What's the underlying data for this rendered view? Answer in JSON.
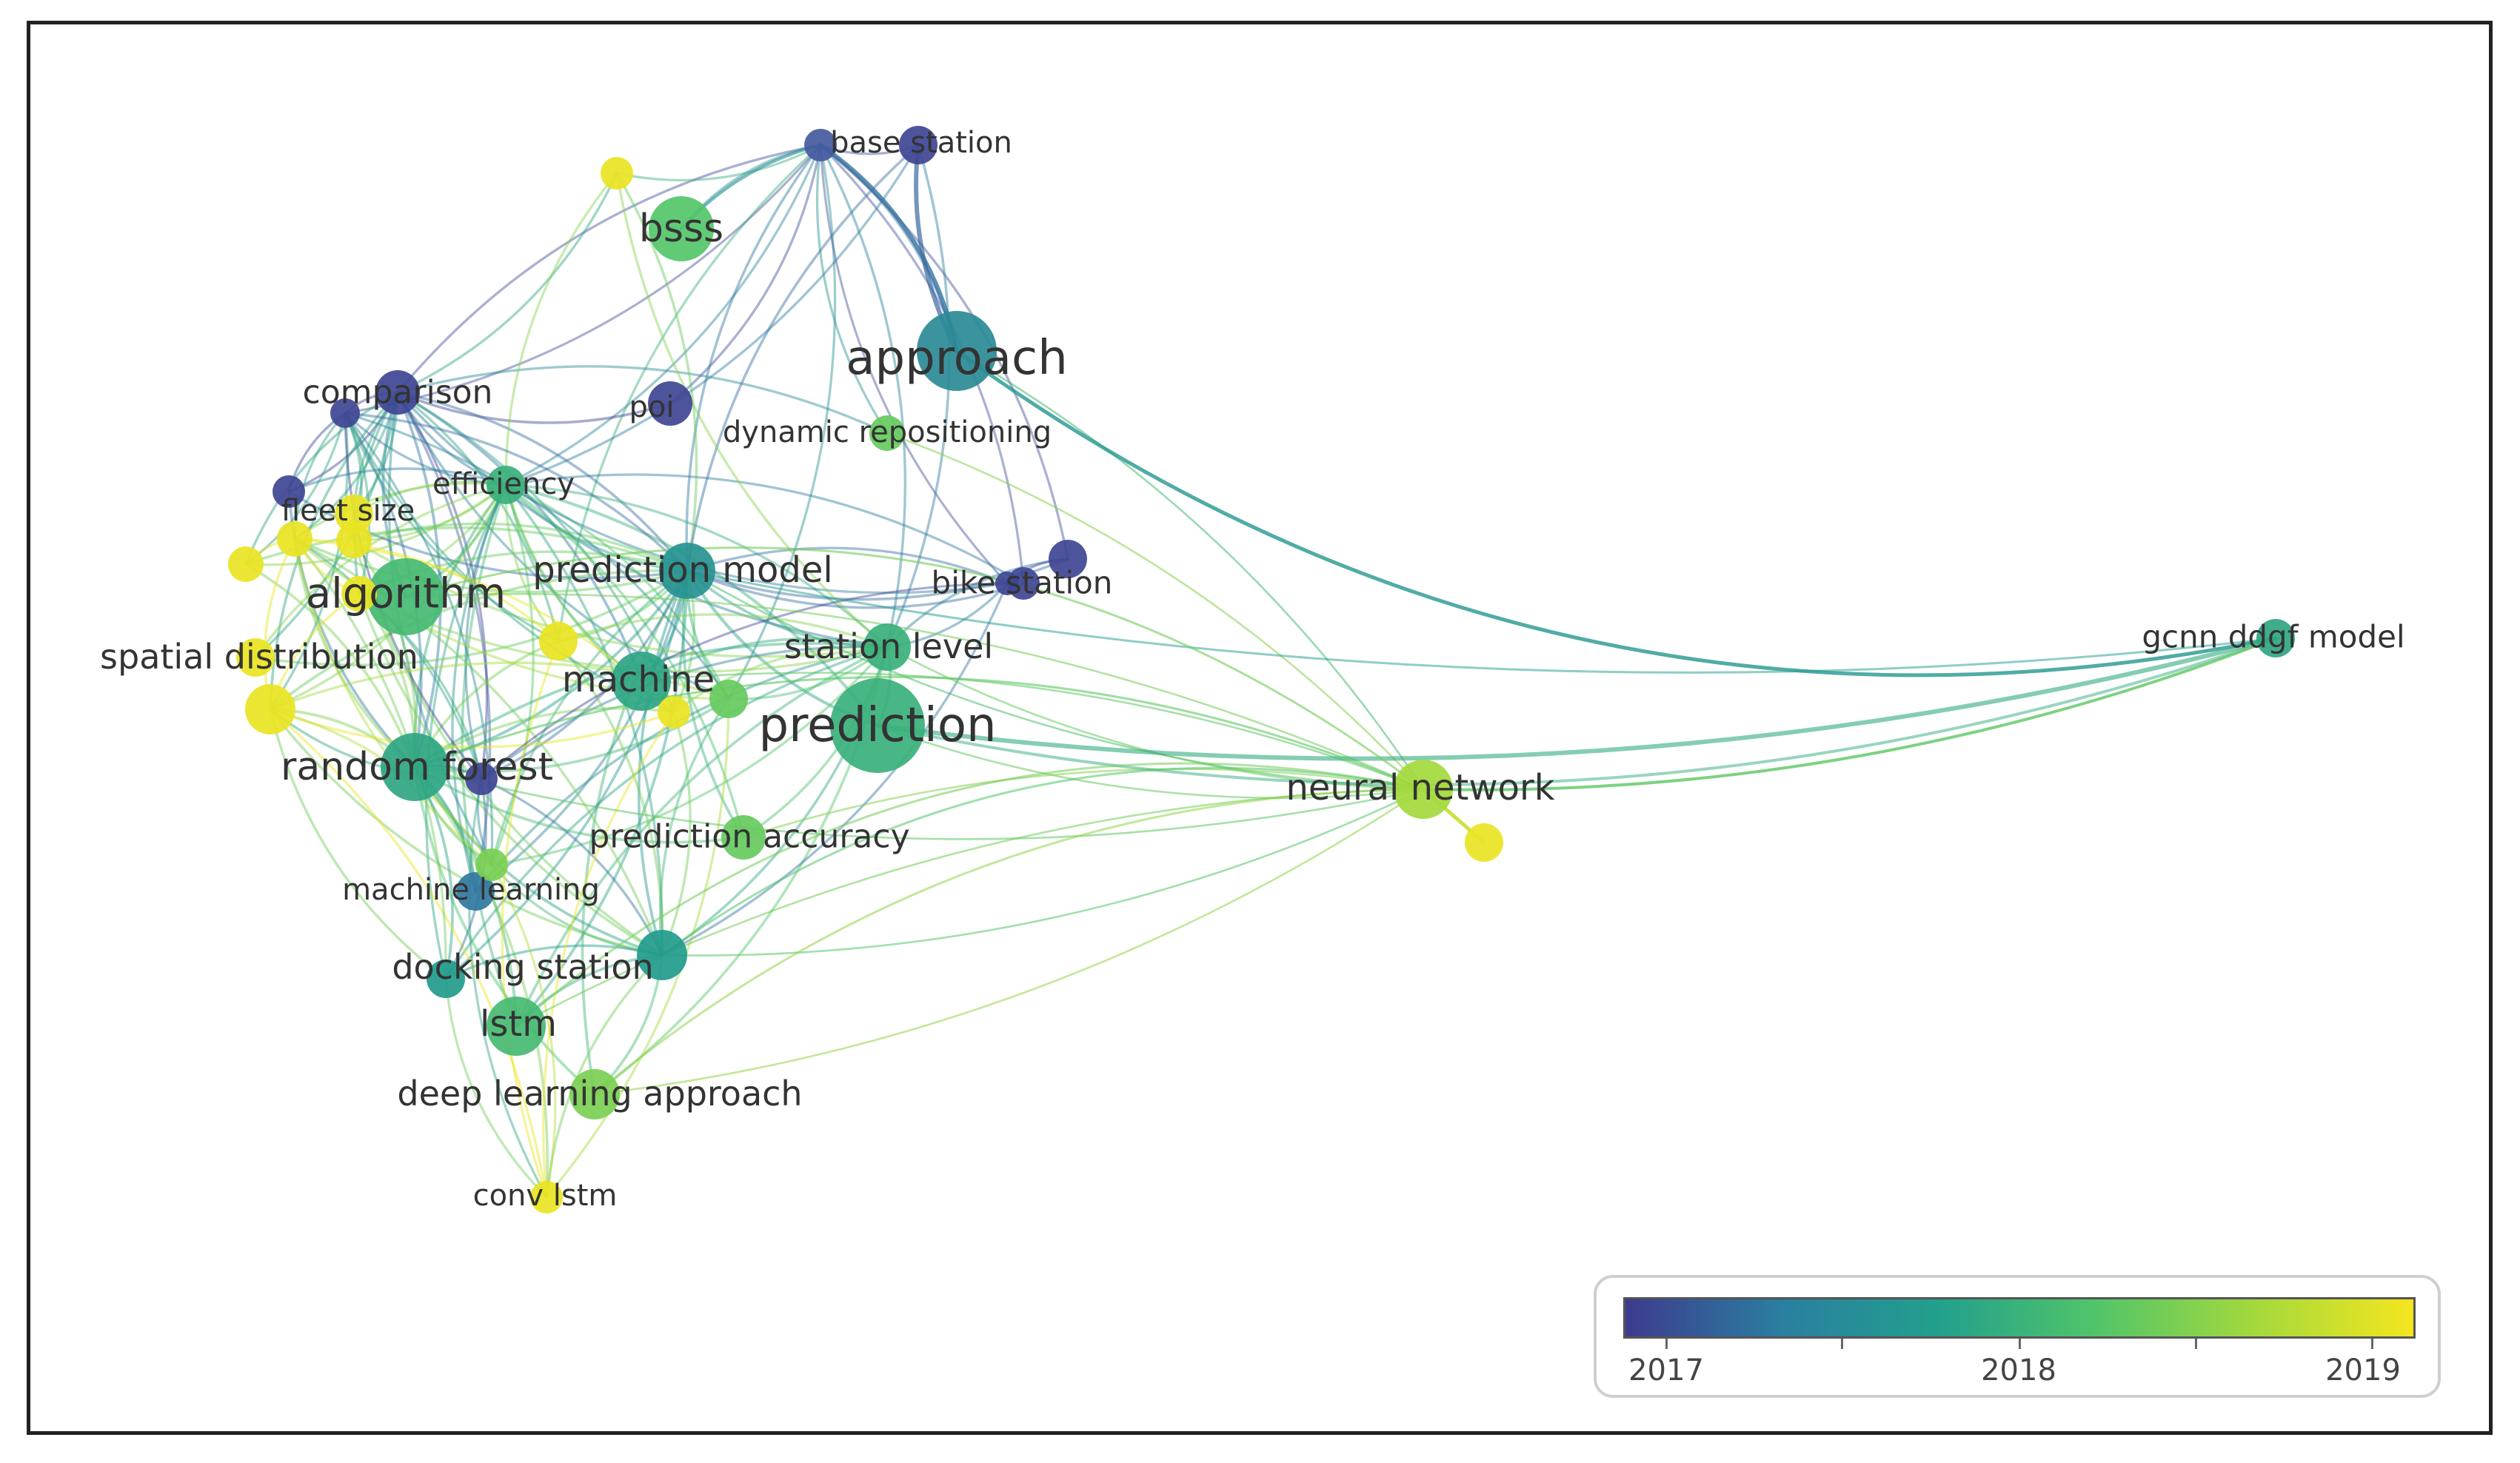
{
  "network": {
    "nodes": [
      {
        "id": "base-station",
        "label": "base station",
        "year": 2017.3
      },
      {
        "id": "bsss",
        "label": "bsss",
        "year": 2018.4
      },
      {
        "id": "approach",
        "label": "approach",
        "year": 2017.8
      },
      {
        "id": "comparison",
        "label": "comparison",
        "year": 2017.1
      },
      {
        "id": "poi",
        "label": "poi",
        "year": 2017.1
      },
      {
        "id": "dynamic-repositioning",
        "label": "dynamic repositioning",
        "year": 2018.5
      },
      {
        "id": "efficiency",
        "label": "efficiency",
        "year": 2018.2
      },
      {
        "id": "fleet-size",
        "label": "fleet size",
        "year": 2019.1
      },
      {
        "id": "algorithm",
        "label": "algorithm",
        "year": 2018.3
      },
      {
        "id": "prediction-model",
        "label": "prediction model",
        "year": 2017.9
      },
      {
        "id": "bike-station",
        "label": "bike station",
        "year": 2017.1
      },
      {
        "id": "spatial-distribution",
        "label": "spatial distribution",
        "year": 2019.1
      },
      {
        "id": "station-level",
        "label": "station level",
        "year": 2018.2
      },
      {
        "id": "machine",
        "label": "machine",
        "year": 2018.1
      },
      {
        "id": "prediction",
        "label": "prediction",
        "year": 2018.2
      },
      {
        "id": "random-forest",
        "label": "random forest",
        "year": 2018.1
      },
      {
        "id": "neural-network",
        "label": "neural network",
        "year": 2018.8
      },
      {
        "id": "gcnn-ddgf-model",
        "label": "gcnn ddgf model",
        "year": 2018.1
      },
      {
        "id": "prediction-accuracy",
        "label": "prediction accuracy",
        "year": 2018.5
      },
      {
        "id": "machine-learning",
        "label": "machine learning",
        "year": 2017.6
      },
      {
        "id": "docking-station",
        "label": "docking station",
        "year": 2018.0
      },
      {
        "id": "lstm",
        "label": "lstm",
        "year": 2018.3
      },
      {
        "id": "deep-learning-approach",
        "label": "deep learning approach",
        "year": 2018.6
      },
      {
        "id": "conv-lstm",
        "label": "conv lstm",
        "year": 2019.1
      }
    ]
  },
  "legend": {
    "tick_labels": [
      "2017",
      "2018",
      "2019"
    ],
    "colors": [
      "#3d3b8e",
      "#2a7fa0",
      "#22a08c",
      "#52c569",
      "#a4d93c",
      "#f4e61e"
    ]
  }
}
